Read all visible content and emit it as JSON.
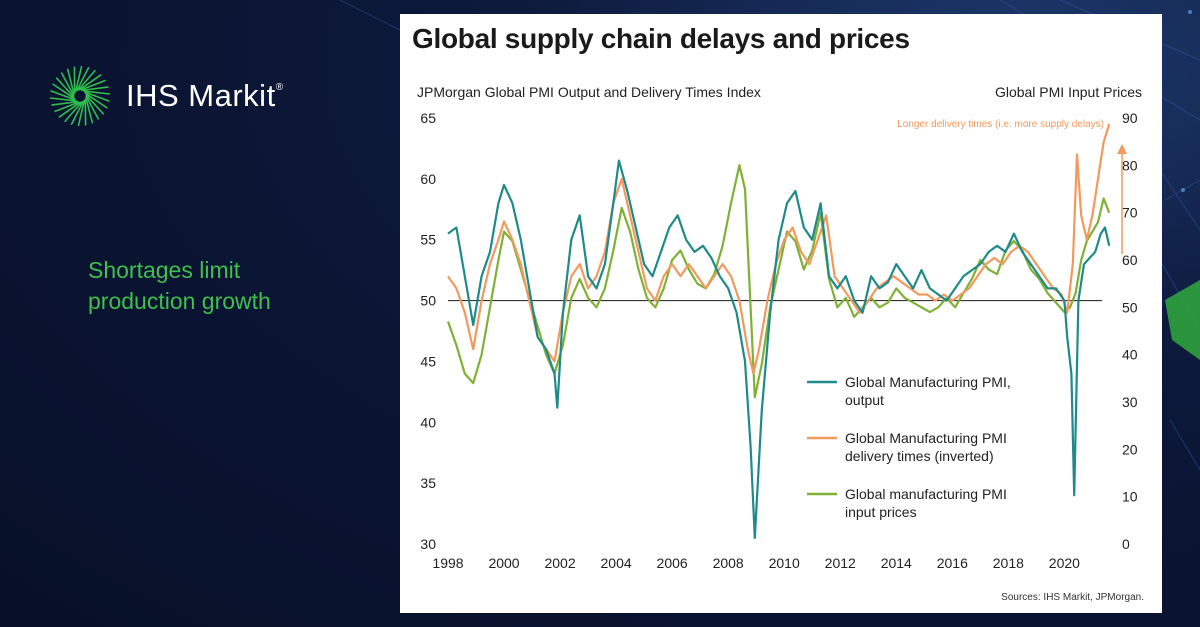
{
  "brand": {
    "name": "IHS Markit",
    "registered_mark": "®",
    "accent_color": "#2fbf4a"
  },
  "tagline": "Shortages limit production growth",
  "chart_data": {
    "type": "line",
    "title": "Global supply chain delays and prices",
    "left_axis_label": "JPMorgan Global PMI  Output and Delivery Times Index",
    "right_axis_label": "Global PMI  Input Prices",
    "annotation": "Longer delivery times (i.e. more supply delays)",
    "sources": "Sources: IHS Markit, JPMorgan.",
    "x_ticks": [
      "1998",
      "2000",
      "2002",
      "2004",
      "2006",
      "2008",
      "2010",
      "2012",
      "2014",
      "2016",
      "2018",
      "2020"
    ],
    "xlim": [
      1998,
      2021.7
    ],
    "y_left": {
      "ticks": [
        "30",
        "35",
        "40",
        "45",
        "50",
        "55",
        "60",
        "65"
      ],
      "lim": [
        30,
        65
      ]
    },
    "y_right": {
      "ticks": [
        "0",
        "10",
        "20",
        "30",
        "40",
        "50",
        "60",
        "70",
        "80",
        "90"
      ],
      "lim": [
        0,
        90
      ]
    },
    "reference_line": 50,
    "legend_placement": "bottom-right",
    "series": [
      {
        "name": "Global Manufacturing PMI, output",
        "color": "#1f8a8a",
        "axis": "left",
        "x": [
          1998,
          1998.3,
          1998.6,
          1998.9,
          1999.2,
          1999.5,
          1999.8,
          2000,
          2000.3,
          2000.6,
          2000.9,
          2001.2,
          2001.5,
          2001.8,
          2001.9,
          2002.1,
          2002.4,
          2002.7,
          2003,
          2003.3,
          2003.6,
          2003.9,
          2004.1,
          2004.4,
          2004.7,
          2005,
          2005.3,
          2005.6,
          2005.9,
          2006.2,
          2006.5,
          2006.8,
          2007.1,
          2007.4,
          2007.7,
          2008,
          2008.3,
          2008.6,
          2008.8,
          2008.95,
          2009.2,
          2009.5,
          2009.8,
          2010.1,
          2010.4,
          2010.7,
          2011,
          2011.3,
          2011.6,
          2011.9,
          2012.2,
          2012.5,
          2012.8,
          2013.1,
          2013.4,
          2013.7,
          2014,
          2014.3,
          2014.6,
          2014.9,
          2015.2,
          2015.5,
          2015.8,
          2016.1,
          2016.4,
          2016.7,
          2017,
          2017.3,
          2017.6,
          2017.9,
          2018.2,
          2018.5,
          2018.8,
          2019.1,
          2019.4,
          2019.7,
          2020,
          2020.1,
          2020.25,
          2020.35,
          2020.5,
          2020.7,
          2020.9,
          2021.1,
          2021.3,
          2021.45,
          2021.6
        ],
        "values": [
          55.5,
          56,
          52,
          48,
          52,
          54,
          58,
          59.5,
          58,
          55,
          51,
          47,
          46,
          44,
          41.2,
          49,
          55,
          57,
          52,
          51,
          53,
          58,
          61.5,
          59,
          56,
          53,
          52,
          54,
          56,
          57,
          55,
          54,
          54.5,
          53.5,
          52,
          51,
          49,
          45,
          38,
          30.5,
          41,
          49,
          55,
          58,
          59,
          56,
          55,
          58,
          52,
          51,
          52,
          50,
          49,
          52,
          51,
          51.5,
          53,
          52,
          51,
          52.5,
          51,
          50.5,
          50,
          51,
          52,
          52.5,
          53,
          54,
          54.5,
          54,
          55.5,
          54,
          53,
          52,
          51,
          51,
          50,
          47,
          44,
          34,
          50,
          53,
          53.5,
          54,
          55.5,
          56,
          54.5
        ]
      },
      {
        "name": "Global Manufacturing PMI delivery times (inverted)",
        "color": "#f29a5e",
        "axis": "left",
        "x": [
          1998,
          1998.3,
          1998.6,
          1998.9,
          1999.2,
          1999.5,
          1999.8,
          2000,
          2000.3,
          2000.6,
          2000.9,
          2001.2,
          2001.5,
          2001.8,
          2002.1,
          2002.4,
          2002.7,
          2003,
          2003.3,
          2003.6,
          2003.9,
          2004.2,
          2004.5,
          2004.8,
          2005.1,
          2005.4,
          2005.7,
          2006,
          2006.3,
          2006.6,
          2006.9,
          2007.2,
          2007.5,
          2007.8,
          2008.1,
          2008.4,
          2008.7,
          2008.9,
          2009.1,
          2009.4,
          2009.7,
          2010,
          2010.3,
          2010.6,
          2010.9,
          2011.2,
          2011.5,
          2011.8,
          2012.1,
          2012.4,
          2012.7,
          2013,
          2013.3,
          2013.6,
          2013.9,
          2014.2,
          2014.5,
          2014.8,
          2015.1,
          2015.4,
          2015.7,
          2016,
          2016.3,
          2016.6,
          2016.9,
          2017.2,
          2017.5,
          2017.8,
          2018.1,
          2018.4,
          2018.7,
          2019,
          2019.3,
          2019.6,
          2019.9,
          2020.1,
          2020.3,
          2020.45,
          2020.6,
          2020.8,
          2021,
          2021.2,
          2021.4,
          2021.6
        ],
        "values": [
          52,
          51,
          49,
          46,
          50,
          53,
          55,
          56.5,
          55,
          53,
          50,
          47,
          46,
          45,
          49,
          52,
          53,
          51,
          52,
          54,
          58,
          60,
          57,
          54,
          51,
          50,
          52,
          53,
          52,
          53,
          52,
          51,
          52,
          53,
          52,
          50,
          46,
          44,
          46,
          50,
          53,
          55,
          56,
          54,
          53,
          55,
          57,
          52,
          51,
          50,
          49,
          50,
          51,
          51.5,
          52,
          51.5,
          51,
          50.5,
          50.5,
          50,
          50.5,
          50,
          50.5,
          51,
          52,
          53,
          53.5,
          53,
          54,
          54.5,
          54,
          53,
          52,
          51,
          50.5,
          49,
          53,
          62,
          57,
          55,
          57,
          60,
          63,
          64.5
        ]
      },
      {
        "name": "Global manufacturing PMI input prices",
        "color": "#7fb135",
        "axis": "right",
        "x": [
          1998,
          1998.3,
          1998.6,
          1998.9,
          1999.2,
          1999.5,
          1999.8,
          2000,
          2000.3,
          2000.6,
          2000.9,
          2001.2,
          2001.5,
          2001.8,
          2002.1,
          2002.4,
          2002.7,
          2003,
          2003.3,
          2003.6,
          2003.9,
          2004.2,
          2004.5,
          2004.8,
          2005.1,
          2005.4,
          2005.7,
          2006,
          2006.3,
          2006.6,
          2006.9,
          2007.2,
          2007.5,
          2007.8,
          2008.1,
          2008.4,
          2008.6,
          2008.8,
          2008.95,
          2009.2,
          2009.5,
          2009.8,
          2010.1,
          2010.4,
          2010.7,
          2011,
          2011.3,
          2011.6,
          2011.9,
          2012.2,
          2012.5,
          2012.8,
          2013.1,
          2013.4,
          2013.7,
          2014,
          2014.3,
          2014.6,
          2014.9,
          2015.2,
          2015.5,
          2015.8,
          2016.1,
          2016.4,
          2016.7,
          2017,
          2017.3,
          2017.6,
          2017.9,
          2018.2,
          2018.5,
          2018.8,
          2019.1,
          2019.4,
          2019.7,
          2020,
          2020.2,
          2020.4,
          2020.6,
          2020.8,
          2021,
          2021.2,
          2021.4,
          2021.6
        ],
        "values": [
          47,
          42,
          36,
          34,
          40,
          50,
          60,
          66,
          64,
          58,
          52,
          46,
          40,
          36,
          42,
          52,
          56,
          52,
          50,
          54,
          62,
          71,
          66,
          58,
          52,
          50,
          54,
          60,
          62,
          58,
          55,
          54,
          57,
          63,
          72,
          80,
          75,
          50,
          31,
          38,
          50,
          58,
          66,
          64,
          58,
          62,
          70,
          56,
          50,
          52,
          48,
          50,
          52,
          50,
          51,
          54,
          52,
          51,
          50,
          49,
          50,
          52,
          50,
          53,
          56,
          60,
          58,
          57,
          62,
          64,
          62,
          58,
          56,
          53,
          51,
          49,
          50,
          53,
          60,
          64,
          66,
          68,
          73,
          70
        ]
      }
    ]
  }
}
